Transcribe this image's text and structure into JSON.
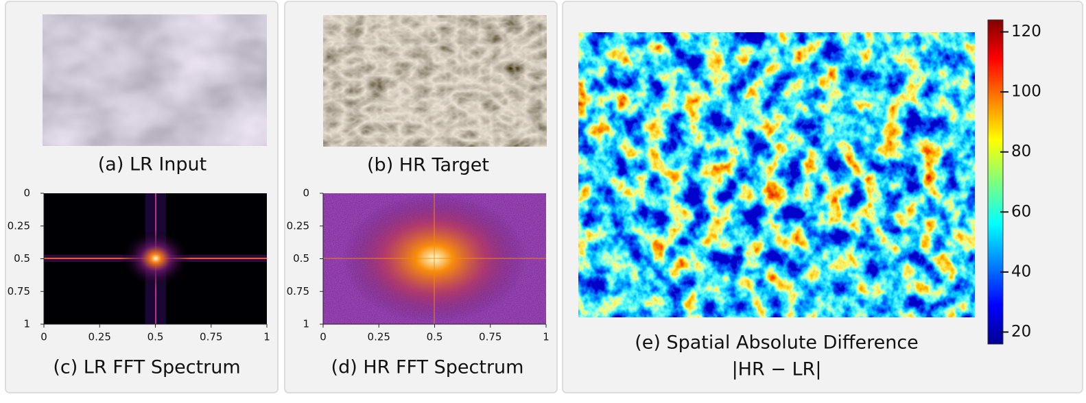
{
  "panels": [
    {
      "caption": "(a) LR Input"
    },
    {
      "caption": "(b) HR Target"
    },
    {
      "caption": "(c) LR FFT Spectrum",
      "xlim": [
        0,
        1
      ],
      "ylim": [
        0,
        1
      ],
      "xticks": [
        0,
        0.25,
        0.5,
        0.75,
        1
      ],
      "yticks": [
        0,
        0.25,
        0.5,
        0.75,
        1
      ]
    },
    {
      "caption": "(d) HR FFT Spectrum",
      "xlim": [
        0,
        1
      ],
      "ylim": [
        0,
        1
      ],
      "xticks": [
        0,
        0.25,
        0.5,
        0.75,
        1
      ],
      "yticks": [
        0,
        0.25,
        0.5,
        0.75,
        1
      ]
    },
    {
      "caption": [
        "(e) Spatial Absolute Difference",
        "|HR − LR|"
      ],
      "colorbar": {
        "lim": [
          16,
          124
        ],
        "ticks": [
          20,
          40,
          60,
          80,
          100,
          120
        ]
      }
    }
  ]
}
